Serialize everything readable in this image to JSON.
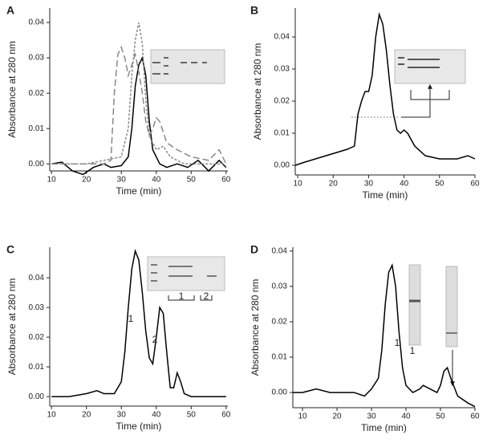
{
  "chart_data": [
    {
      "type": "line",
      "label": "A",
      "xlabel": "Time (min)",
      "ylabel": "Absorbance at 280 nm",
      "xlim": [
        9.5,
        60.5
      ],
      "ylim": [
        -0.002,
        0.0441
      ],
      "xticks": [
        10,
        20,
        30,
        40,
        50,
        60
      ],
      "yticks": [
        {
          "value": 0,
          "label": "0.00"
        },
        0.01,
        0.02,
        0.03,
        0.04
      ],
      "annotations": [],
      "series": [
        {
          "color": "#000000",
          "linestyle": "solid",
          "x": [
            10,
            13,
            16,
            19,
            22,
            25,
            27,
            30,
            32,
            33,
            34,
            35,
            36,
            37,
            38,
            39,
            41,
            43,
            46,
            49,
            52,
            55,
            57,
            58,
            60
          ],
          "values": [
            0.0,
            0.0005,
            -0.002,
            -0.003,
            -0.001,
            0.0,
            -0.001,
            -0.0005,
            0.002,
            0.01,
            0.022,
            0.028,
            0.03,
            0.025,
            0.012,
            0.004,
            0.0,
            -0.001,
            0.0,
            -0.001,
            0.001,
            -0.002,
            0.0,
            0.001,
            -0.001
          ]
        },
        {
          "color": "#888888",
          "linestyle": "dashed",
          "x": [
            10,
            15,
            20,
            25,
            27,
            28,
            29,
            30,
            31,
            32,
            33,
            34,
            35,
            36,
            37,
            38,
            39,
            40,
            41,
            43,
            46,
            50,
            55,
            58,
            60
          ],
          "values": [
            0.0,
            0.0,
            0.0,
            0.0,
            0.001,
            0.02,
            0.031,
            0.033,
            0.03,
            0.025,
            0.028,
            0.031,
            0.026,
            0.02,
            0.012,
            0.008,
            0.01,
            0.013,
            0.012,
            0.006,
            0.004,
            0.002,
            0.001,
            0.004,
            0.0
          ]
        },
        {
          "color": "#888888",
          "linestyle": "dotted",
          "x": [
            10,
            20,
            30,
            32,
            33,
            34,
            35,
            36,
            37,
            38,
            40,
            42,
            44,
            48,
            52,
            56,
            60
          ],
          "values": [
            0.0,
            0.0,
            0.002,
            0.01,
            0.025,
            0.035,
            0.04,
            0.034,
            0.018,
            0.008,
            0.004,
            0.005,
            0.002,
            0.0,
            0.0,
            0.0,
            0.0
          ]
        }
      ]
    },
    {
      "type": "line",
      "label": "B",
      "xlabel": "Time (min)",
      "ylabel": "Absorbance at 280 nm",
      "xlim": [
        9.3,
        60
      ],
      "ylim": [
        -0.003,
        0.049
      ],
      "xticks": [
        10,
        20,
        30,
        40,
        50,
        60
      ],
      "yticks": [
        {
          "value": 0,
          "label": "0.00"
        },
        0.01,
        0.02,
        0.03,
        0.04
      ],
      "annotations": [],
      "series": [
        {
          "color": "#000000",
          "linestyle": "solid",
          "x": [
            9.3,
            12,
            15,
            18,
            21,
            24,
            26,
            27,
            28,
            29,
            30,
            31,
            32,
            33,
            34,
            35,
            36,
            37,
            38,
            39,
            40,
            41,
            43,
            46,
            50,
            55,
            58,
            60
          ],
          "values": [
            0.0,
            0.001,
            0.002,
            0.003,
            0.004,
            0.005,
            0.006,
            0.016,
            0.02,
            0.023,
            0.023,
            0.028,
            0.04,
            0.047,
            0.044,
            0.036,
            0.025,
            0.016,
            0.011,
            0.01,
            0.011,
            0.01,
            0.006,
            0.003,
            0.002,
            0.002,
            0.003,
            0.002
          ]
        }
      ]
    },
    {
      "type": "line",
      "label": "C",
      "xlabel": "Time (min)",
      "ylabel": "Absorbance at 280 nm",
      "xlim": [
        9.5,
        60.5
      ],
      "ylim": [
        -0.0032,
        0.0503
      ],
      "xticks": [
        10,
        20,
        30,
        40,
        50,
        60
      ],
      "yticks": [
        {
          "value": 0,
          "label": "0.00"
        },
        0.01,
        0.02,
        0.03,
        0.04
      ],
      "annotations": [
        "1",
        "2",
        "1",
        "2"
      ],
      "series": [
        {
          "color": "#000000",
          "linestyle": "solid",
          "x": [
            10,
            15,
            20,
            23,
            25,
            28,
            30,
            31,
            32,
            33,
            34,
            35,
            36,
            37,
            38,
            39,
            40,
            41,
            42,
            43,
            44,
            45,
            46,
            47,
            48,
            50,
            55,
            60
          ],
          "values": [
            0.0,
            0.0,
            0.001,
            0.002,
            0.001,
            0.001,
            0.005,
            0.015,
            0.03,
            0.043,
            0.049,
            0.046,
            0.035,
            0.022,
            0.013,
            0.011,
            0.02,
            0.03,
            0.028,
            0.015,
            0.003,
            0.003,
            0.008,
            0.005,
            0.001,
            0.0,
            0.0,
            0.0
          ]
        }
      ]
    },
    {
      "type": "line",
      "label": "D",
      "xlabel": "Time (min)",
      "ylabel": "Absorbance at 280 nm",
      "xlim": [
        7.2,
        60
      ],
      "ylim": [
        -0.0043,
        0.0411
      ],
      "xticks": [
        10,
        20,
        30,
        40,
        50,
        60
      ],
      "yticks": [
        {
          "value": 0,
          "label": "0.00"
        },
        0.01,
        0.02,
        0.03,
        0.04
      ],
      "annotations": [
        "1",
        "1"
      ],
      "series": [
        {
          "color": "#000000",
          "linestyle": "solid",
          "x": [
            7.2,
            10,
            14,
            18,
            25,
            28,
            30,
            32,
            33,
            34,
            35,
            36,
            37,
            38,
            39,
            40,
            42,
            44,
            45,
            47,
            49,
            50,
            51,
            52,
            53,
            55,
            58,
            60
          ],
          "values": [
            0.0,
            0.0,
            0.001,
            0.0,
            0.0,
            -0.001,
            0.001,
            0.004,
            0.012,
            0.025,
            0.034,
            0.036,
            0.03,
            0.017,
            0.007,
            0.002,
            0.0,
            0.001,
            0.002,
            0.001,
            0.0,
            0.002,
            0.006,
            0.007,
            0.004,
            -0.001,
            -0.003,
            -0.004
          ]
        }
      ]
    }
  ]
}
